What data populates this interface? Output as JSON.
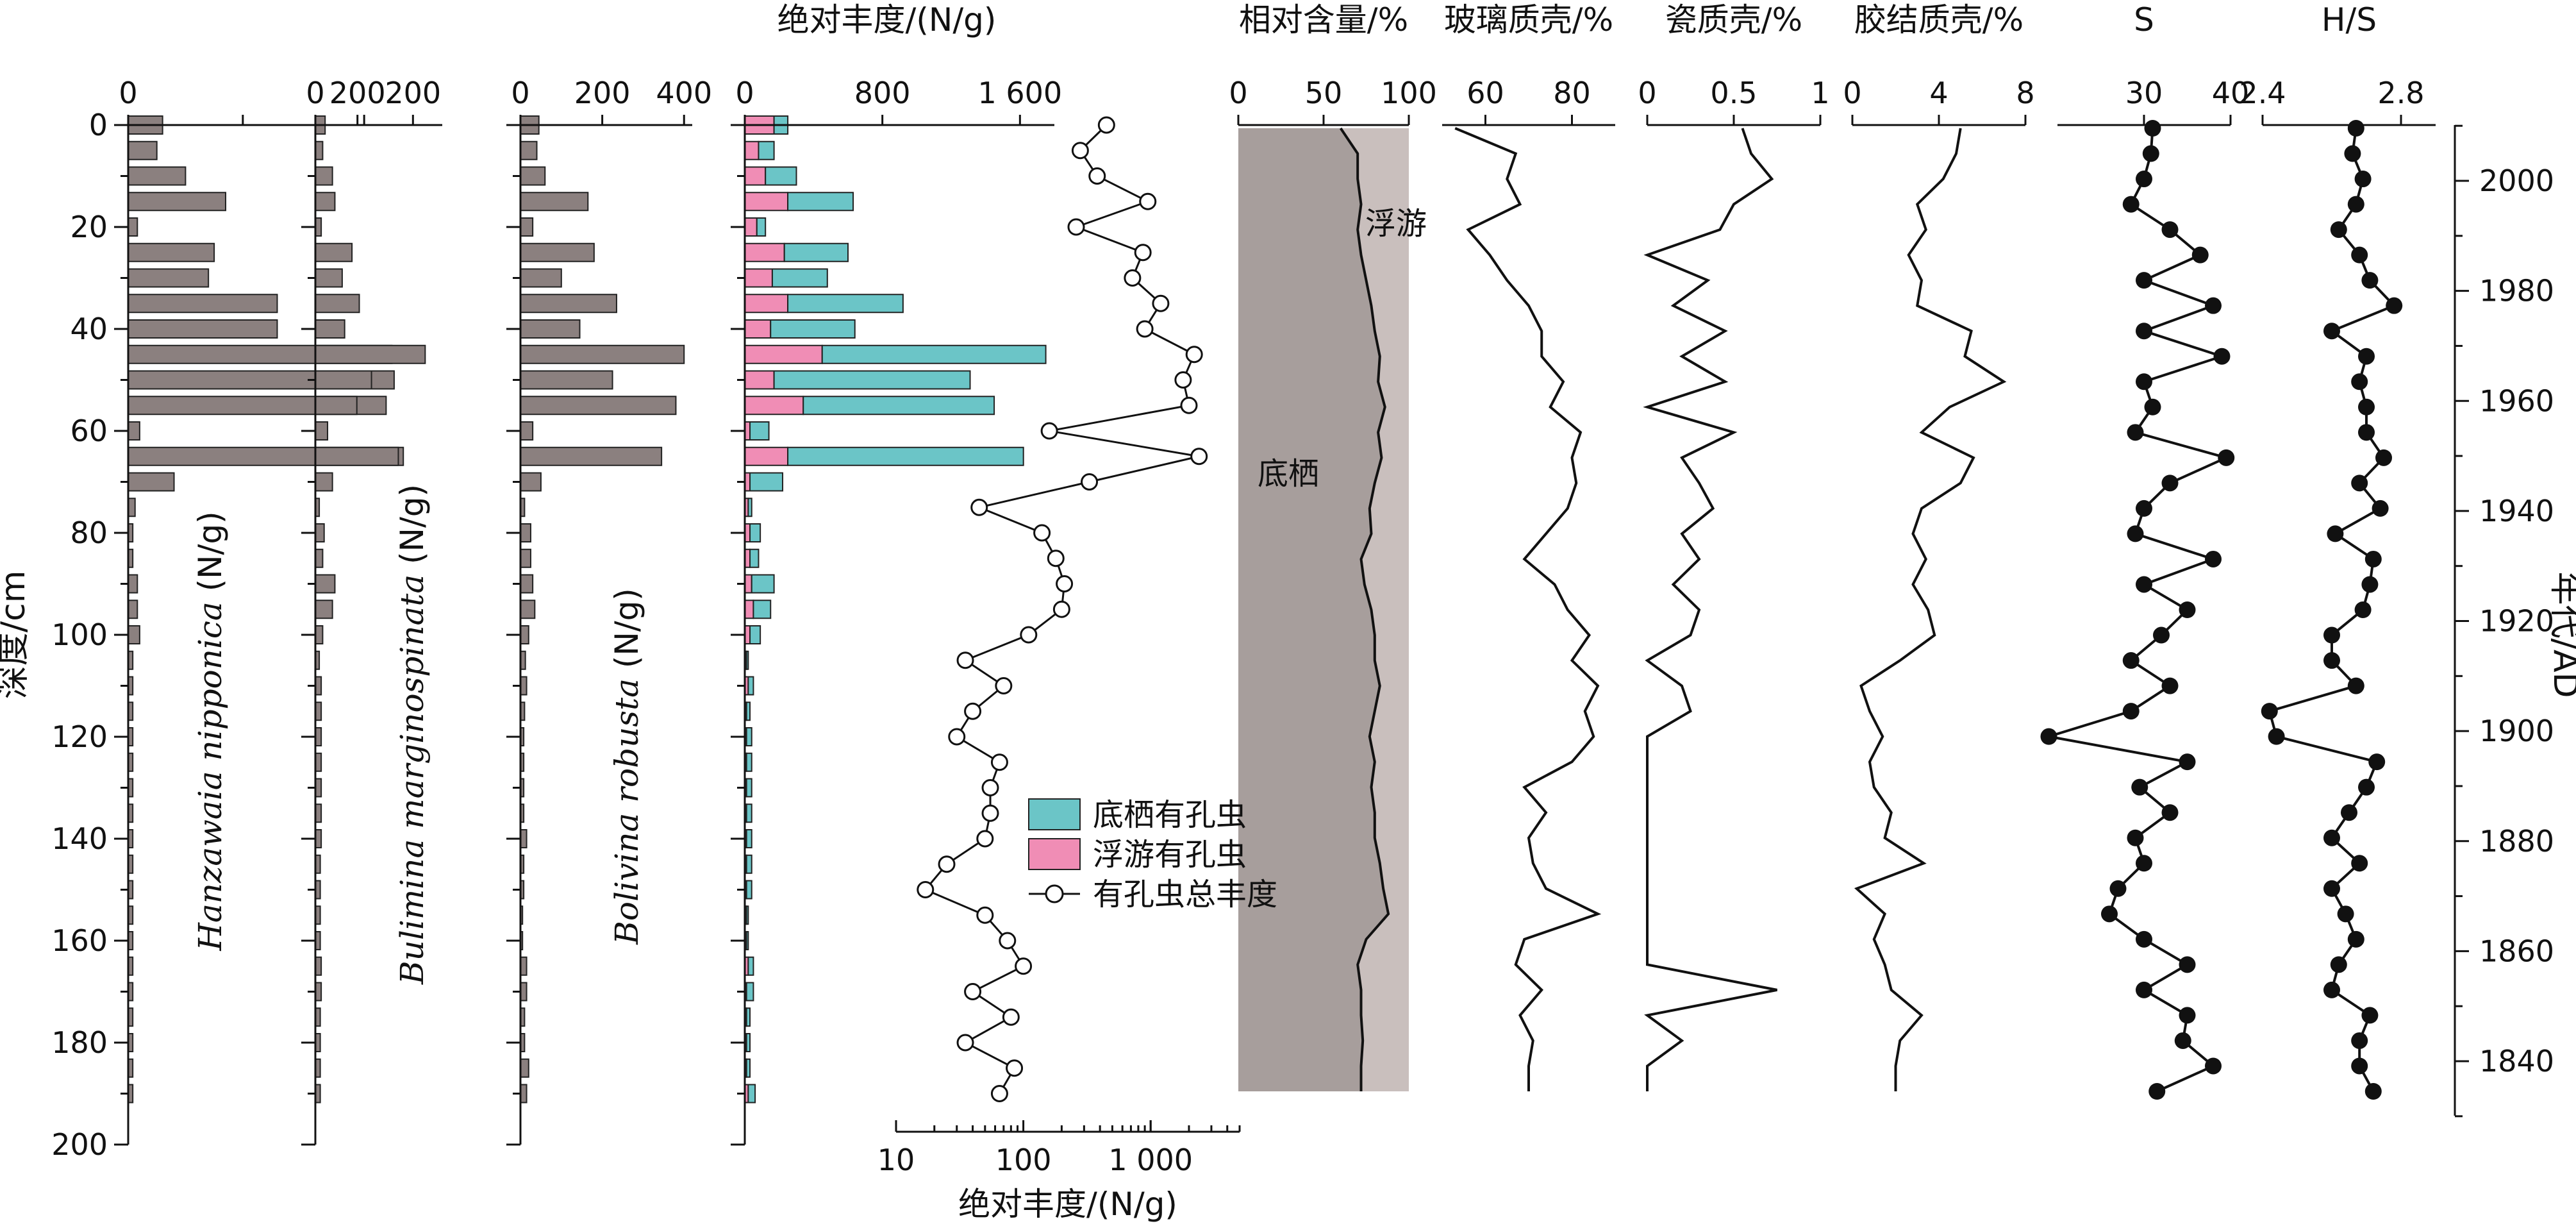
{
  "chart_data": {
    "type": "bar",
    "shared_y_axis": {
      "label": "深度/cm",
      "ticks": [
        0,
        20,
        40,
        60,
        80,
        100,
        120,
        140,
        160,
        180,
        200
      ],
      "range": [
        0,
        200
      ],
      "depths": [
        0,
        5,
        10,
        15,
        20,
        25,
        30,
        35,
        40,
        45,
        50,
        55,
        60,
        65,
        70,
        75,
        80,
        85,
        90,
        95,
        100,
        105,
        110,
        115,
        120,
        125,
        130,
        135,
        140,
        145,
        150,
        155,
        160,
        165,
        170,
        175,
        180,
        185,
        190
      ]
    },
    "right_axis": {
      "label": "年代/AD",
      "ticks": [
        1840,
        1860,
        1880,
        1900,
        1920,
        1940,
        1960,
        1980,
        2000
      ]
    },
    "panels": [
      {
        "name": "hanzawaia",
        "label": "Hanzawaia nipponica",
        "unit": "(N/g)",
        "type": "bar",
        "xlim": [
          0,
          260
        ],
        "xticks": [
          0,
          100,
          200
        ],
        "xticklabels": [
          "0",
          "",
          "200"
        ],
        "values": [
          30,
          25,
          50,
          85,
          8,
          75,
          70,
          130,
          130,
          230,
          232,
          225,
          10,
          240,
          40,
          6,
          4,
          4,
          8,
          8,
          10,
          4,
          4,
          4,
          4,
          4,
          4,
          4,
          4,
          4,
          4,
          4,
          4,
          4,
          4,
          4,
          4,
          4,
          4
        ],
        "color": "#8b807f"
      },
      {
        "name": "bulimina",
        "label": "Bulimina marginospinata",
        "unit": "(N/g)",
        "type": "bar",
        "xlim": [
          0,
          260
        ],
        "xticks": [
          0,
          100,
          200
        ],
        "xticklabels": [
          "0",
          "",
          "200"
        ],
        "values": [
          20,
          15,
          35,
          40,
          12,
          75,
          55,
          90,
          60,
          225,
          115,
          85,
          25,
          170,
          35,
          8,
          18,
          15,
          40,
          35,
          15,
          8,
          12,
          12,
          12,
          12,
          12,
          12,
          12,
          10,
          10,
          10,
          10,
          12,
          12,
          10,
          10,
          10,
          10
        ],
        "color": "#8b807f"
      },
      {
        "name": "bolivina",
        "label": "Bolivina robusta",
        "unit": "(N/g)",
        "type": "bar",
        "xlim": [
          0,
          420
        ],
        "xticks": [
          0,
          200,
          400
        ],
        "xticklabels": [
          "0",
          "200",
          "400"
        ],
        "values": [
          45,
          40,
          60,
          165,
          30,
          180,
          100,
          235,
          145,
          400,
          225,
          380,
          30,
          345,
          50,
          10,
          25,
          25,
          30,
          35,
          20,
          12,
          15,
          10,
          8,
          8,
          8,
          8,
          15,
          8,
          8,
          5,
          5,
          15,
          15,
          10,
          10,
          20,
          15
        ],
        "color": "#8b807f"
      },
      {
        "name": "abundance",
        "label": "绝对丰度/(N/g)",
        "type": "stacked-bar",
        "xlim": [
          0,
          1800
        ],
        "xticks": [
          0,
          800,
          1600
        ],
        "xticklabels": [
          "0",
          "800",
          "1 600"
        ],
        "series": [
          {
            "name": "浮游有孔虫",
            "color": "#f08db5",
            "values": [
              170,
              80,
              120,
              250,
              70,
              230,
              160,
              250,
              150,
              450,
              170,
              340,
              30,
              250,
              30,
              20,
              30,
              30,
              40,
              50,
              30,
              10,
              20,
              10,
              10,
              10,
              10,
              10,
              10,
              10,
              10,
              10,
              10,
              20,
              10,
              10,
              10,
              10,
              20
            ]
          },
          {
            "name": "底栖有孔虫",
            "color": "#6bc5c7",
            "values": [
              80,
              90,
              180,
              380,
              50,
              370,
              320,
              670,
              490,
              1300,
              1140,
              1110,
              110,
              1370,
              190,
              20,
              60,
              50,
              130,
              100,
              60,
              10,
              30,
              20,
              30,
              30,
              30,
              30,
              30,
              30,
              30,
              10,
              10,
              30,
              40,
              20,
              20,
              20,
              40
            ]
          }
        ],
        "total_series": {
          "name": "有孔虫总丰度",
          "axis_label": "绝对丰度/(N/g)",
          "scale": "log",
          "xlim": [
            10,
            5000
          ],
          "xticks": [
            10,
            100,
            1000
          ],
          "xticklabels": [
            "10",
            "100",
            "1 000"
          ],
          "depths": [
            0,
            5,
            10,
            15,
            20,
            25,
            30,
            35,
            40,
            45,
            50,
            55,
            60,
            65,
            70,
            75,
            80,
            85,
            90,
            95,
            100,
            105,
            110,
            115,
            120,
            125,
            130,
            135,
            140,
            145,
            150,
            155,
            160,
            165,
            170,
            175,
            180,
            185,
            190
          ],
          "values": [
            450,
            280,
            380,
            950,
            260,
            870,
            720,
            1200,
            900,
            2200,
            1800,
            2000,
            160,
            2400,
            330,
            45,
            140,
            180,
            210,
            200,
            110,
            35,
            70,
            40,
            30,
            65,
            55,
            55,
            50,
            25,
            17,
            50,
            75,
            100,
            40,
            80,
            35,
            85,
            65
          ]
        }
      },
      {
        "name": "relative",
        "label": "相对含量/%",
        "type": "area",
        "xlim": [
          0,
          100
        ],
        "xticks": [
          0,
          50,
          100
        ],
        "xticklabels": [
          "0",
          "50",
          "100"
        ],
        "depths": [
          0,
          5,
          10,
          15,
          20,
          25,
          30,
          35,
          40,
          45,
          50,
          55,
          60,
          65,
          70,
          75,
          80,
          85,
          90,
          95,
          100,
          105,
          110,
          115,
          120,
          125,
          130,
          135,
          140,
          145,
          150,
          155,
          160,
          165,
          170,
          175,
          180,
          185,
          190
        ],
        "benthic_percent": [
          60,
          70,
          70,
          72,
          70,
          72,
          75,
          78,
          80,
          83,
          82,
          86,
          82,
          84,
          80,
          77,
          78,
          72,
          74,
          78,
          80,
          80,
          83,
          80,
          77,
          80,
          78,
          80,
          80,
          83,
          85,
          88,
          75,
          70,
          72,
          72,
          73,
          72,
          72
        ],
        "colors": {
          "benthic": "#a79e9c",
          "planktonic": "#c9bfbd"
        },
        "annotations": [
          "浮游",
          "底栖"
        ]
      },
      {
        "name": "glass",
        "label": "玻璃质壳/%",
        "type": "line",
        "xlim": [
          50,
          90
        ],
        "xticks": [
          60,
          80
        ],
        "xticklabels": [
          "60",
          "80"
        ],
        "depths": [
          0,
          5,
          10,
          15,
          20,
          25,
          30,
          35,
          40,
          45,
          50,
          55,
          60,
          65,
          70,
          75,
          80,
          85,
          90,
          95,
          100,
          105,
          110,
          115,
          120,
          125,
          130,
          135,
          140,
          145,
          150,
          155,
          160,
          165,
          170,
          175,
          180,
          185,
          190
        ],
        "values": [
          53,
          67,
          65,
          68,
          56,
          61,
          65,
          70,
          73,
          73,
          78,
          75,
          82,
          80,
          81,
          79,
          74,
          69,
          76,
          79,
          84,
          80,
          86,
          83,
          85,
          80,
          69,
          74,
          70,
          71,
          74,
          86,
          69,
          67,
          73,
          68,
          71,
          70,
          70
        ],
        "color": "#111111"
      },
      {
        "name": "porcelain",
        "label": "瓷质壳/%",
        "type": "line",
        "xlim": [
          0,
          1
        ],
        "xticks": [
          0,
          0.5,
          1
        ],
        "xticklabels": [
          "0",
          "0.5",
          "1"
        ],
        "depths": [
          0,
          5,
          10,
          15,
          20,
          25,
          30,
          35,
          40,
          45,
          50,
          55,
          60,
          65,
          70,
          75,
          80,
          85,
          90,
          95,
          100,
          105,
          110,
          115,
          120,
          125,
          130,
          135,
          140,
          145,
          150,
          155,
          160,
          165,
          170,
          175,
          180,
          185,
          190
        ],
        "values": [
          0.55,
          0.6,
          0.72,
          0.5,
          0.42,
          0.0,
          0.35,
          0.15,
          0.45,
          0.2,
          0.45,
          0.0,
          0.5,
          0.2,
          0.3,
          0.38,
          0.2,
          0.3,
          0.15,
          0.3,
          0.25,
          0.0,
          0.2,
          0.25,
          0.0,
          0.0,
          0.0,
          0.0,
          0.0,
          0.0,
          0.0,
          0.0,
          0.0,
          0.0,
          0.75,
          0.0,
          0.2,
          0.0,
          0.0
        ],
        "color": "#111111"
      },
      {
        "name": "cemented",
        "label": "胶结质壳/%",
        "type": "line",
        "xlim": [
          0,
          8
        ],
        "xticks": [
          0,
          4,
          8
        ],
        "xticklabels": [
          "0",
          "4",
          "8"
        ],
        "depths": [
          0,
          5,
          10,
          15,
          20,
          25,
          30,
          35,
          40,
          45,
          50,
          55,
          60,
          65,
          70,
          75,
          80,
          85,
          90,
          95,
          100,
          105,
          110,
          115,
          120,
          125,
          130,
          135,
          140,
          145,
          150,
          155,
          160,
          165,
          170,
          175,
          180,
          185,
          190
        ],
        "values": [
          5,
          4.8,
          4.2,
          3,
          3.4,
          2.6,
          3.2,
          3,
          5.5,
          5.2,
          7,
          4.5,
          3.2,
          5.6,
          5,
          3.2,
          2.8,
          3.4,
          2.8,
          3.5,
          3.8,
          2.2,
          0.4,
          0.8,
          1.4,
          0.8,
          1,
          1.8,
          1.5,
          3.3,
          0.2,
          1.5,
          1,
          1.5,
          1.8,
          3.2,
          2.2,
          2,
          2
        ],
        "color": "#111111"
      },
      {
        "name": "S",
        "label": "S",
        "type": "line-marker",
        "xlim": [
          20,
          40
        ],
        "xticks": [
          30,
          40
        ],
        "xticklabels": [
          "30",
          "40"
        ],
        "depths": [
          0,
          5,
          10,
          15,
          20,
          25,
          30,
          35,
          40,
          45,
          50,
          55,
          60,
          65,
          70,
          75,
          80,
          85,
          90,
          95,
          100,
          105,
          110,
          115,
          120,
          125,
          130,
          135,
          140,
          145,
          150,
          155,
          160,
          165,
          170,
          175,
          180,
          185,
          190
        ],
        "values": [
          31,
          30.8,
          30,
          28.5,
          33,
          36.5,
          30,
          38,
          30,
          39,
          30,
          31,
          29,
          39.5,
          33,
          30,
          29,
          38,
          30,
          35,
          32,
          28.5,
          33,
          28.5,
          19,
          35,
          29.5,
          33,
          29,
          30,
          27,
          26,
          30,
          35,
          30,
          35,
          34.5,
          38,
          31.5
        ],
        "color": "#111111"
      },
      {
        "name": "HS",
        "label": "H/S",
        "type": "line-marker",
        "xlim": [
          2.4,
          2.9
        ],
        "xticks": [
          2.4,
          2.8
        ],
        "xticklabels": [
          "2.4",
          "2.8"
        ],
        "depths": [
          0,
          5,
          10,
          15,
          20,
          25,
          30,
          35,
          40,
          45,
          50,
          55,
          60,
          65,
          70,
          75,
          80,
          85,
          90,
          95,
          100,
          105,
          110,
          115,
          120,
          125,
          130,
          135,
          140,
          145,
          150,
          155,
          160,
          165,
          170,
          175,
          180,
          185,
          190
        ],
        "values": [
          2.67,
          2.66,
          2.69,
          2.67,
          2.62,
          2.68,
          2.71,
          2.78,
          2.6,
          2.7,
          2.68,
          2.7,
          2.7,
          2.75,
          2.68,
          2.74,
          2.61,
          2.72,
          2.71,
          2.69,
          2.6,
          2.6,
          2.67,
          2.42,
          2.44,
          2.73,
          2.7,
          2.65,
          2.6,
          2.68,
          2.6,
          2.64,
          2.67,
          2.62,
          2.6,
          2.71,
          2.68,
          2.68,
          2.72
        ],
        "color": "#111111"
      }
    ],
    "legend": {
      "placement": "center",
      "items": [
        {
          "label": "底栖有孔虫",
          "kind": "box",
          "color": "#6bc5c7"
        },
        {
          "label": "浮游有孔虫",
          "kind": "box",
          "color": "#f08db5"
        },
        {
          "label": "有孔虫总丰度",
          "kind": "line-circle",
          "color": "#111111"
        }
      ]
    }
  }
}
